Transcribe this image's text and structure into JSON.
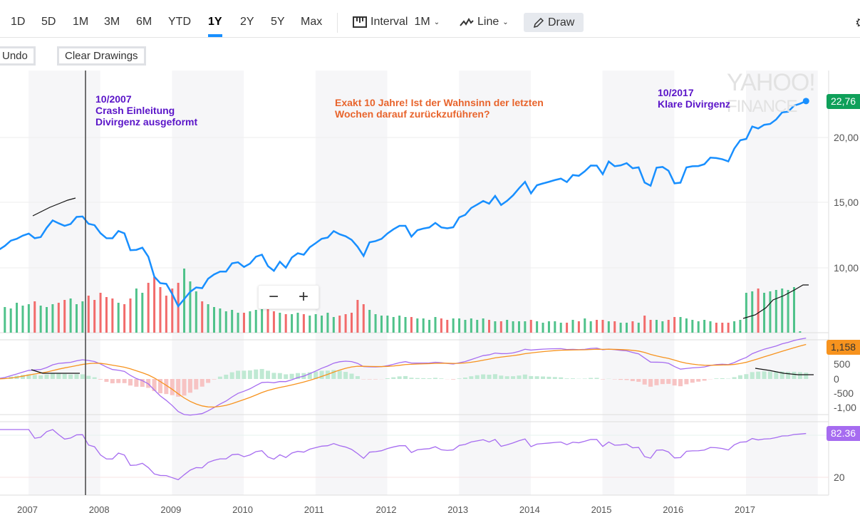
{
  "toolbar": {
    "ranges": [
      "1D",
      "5D",
      "1M",
      "3M",
      "6M",
      "YTD",
      "1Y",
      "2Y",
      "5Y",
      "Max"
    ],
    "active_range": "1Y",
    "interval_label": "Interval",
    "interval_value": "1M",
    "chart_type": "Line",
    "draw_label": "Draw"
  },
  "actions": {
    "undo": "Undo",
    "clear": "Clear Drawings"
  },
  "annotations": {
    "left": [
      "10/2007",
      "Crash Einleitung",
      "Divirgenz ausgeformt"
    ],
    "middle": [
      "Exakt 10 Jahre! Ist der Wahnsinn der letzten",
      "Wochen darauf zurückzuführen?"
    ],
    "right": [
      "10/2017",
      "Klare Divirgenz"
    ]
  },
  "watermark": [
    "YAHOO!",
    "FINANCE"
  ],
  "colors": {
    "price": "#188fff",
    "up": "#4fc28a",
    "down": "#f26b6b",
    "macd": "#a66cf0",
    "signal": "#f7931e",
    "rsi": "#a66cf0",
    "annotation_purple": "#5a14c8",
    "annotation_orange": "#e8642c",
    "price_tag": "#0fa05a"
  },
  "axes": {
    "price_ticks": [
      "20,00",
      "15,00",
      "10,00"
    ],
    "price_tag": "22,76",
    "macd_ticks": [
      "500",
      "0",
      "-500",
      "-1,00"
    ],
    "macd_tag": "1,158",
    "rsi_ticks": [
      "20"
    ],
    "rsi_tag": "82.36",
    "years": [
      "2007",
      "2008",
      "2009",
      "2010",
      "2011",
      "2012",
      "2013",
      "2014",
      "2015",
      "2016",
      "2017"
    ]
  },
  "chart_data": {
    "type": "line",
    "start": "2006-07",
    "interval": "1M",
    "price": [
      11185,
      11381,
      11679,
      12081,
      12221,
      12463,
      12622,
      12268,
      12354,
      13063,
      13628,
      13409,
      13212,
      13358,
      13896,
      13930,
      13372,
      13265,
      12650,
      12266,
      12263,
      12820,
      12638,
      11350,
      11378,
      11544,
      10851,
      9325,
      8829,
      8776,
      8001,
      7063,
      7609,
      8168,
      8500,
      8447,
      9172,
      9496,
      9712,
      9713,
      10345,
      10428,
      10067,
      10325,
      10857,
      11009,
      10137,
      9774,
      10466,
      10015,
      10788,
      11118,
      11006,
      11578,
      11892,
      12226,
      12320,
      12811,
      12570,
      12414,
      12143,
      11614,
      10913,
      11955,
      12046,
      12218,
      12633,
      12952,
      13212,
      13214,
      12393,
      12880,
      13009,
      13091,
      13437,
      13096,
      13026,
      13104,
      13861,
      14054,
      14579,
      14840,
      15116,
      14910,
      15500,
      14810,
      15130,
      15546,
      16086,
      16577,
      15699,
      16322,
      16458,
      16581,
      16717,
      16827,
      16563,
      17098,
      17043,
      17391,
      17828,
      17823,
      17165,
      18133,
      17776,
      17841,
      18011,
      17620,
      17690,
      16528,
      16285,
      17664,
      17720,
      17425,
      16466,
      16517,
      17685,
      17774,
      17787,
      17930,
      18432,
      18401,
      18308,
      18142,
      19124,
      19763,
      19864,
      20812,
      20663,
      20941,
      21009,
      21350,
      21891,
      21948,
      22405,
      22560,
      22760
    ],
    "volume": [
      38,
      40,
      36,
      34,
      42,
      38,
      40,
      44,
      38,
      36,
      40,
      42,
      46,
      48,
      40,
      44,
      52,
      46,
      56,
      50,
      48,
      42,
      40,
      48,
      62,
      56,
      70,
      78,
      64,
      52,
      62,
      70,
      90,
      72,
      58,
      44,
      40,
      36,
      34,
      30,
      32,
      28,
      28,
      30,
      32,
      34,
      36,
      30,
      28,
      26,
      26,
      28,
      26,
      24,
      26,
      24,
      28,
      22,
      24,
      26,
      28,
      46,
      40,
      32,
      26,
      24,
      24,
      22,
      24,
      22,
      22,
      20,
      20,
      18,
      22,
      20,
      18,
      20,
      20,
      18,
      20,
      18,
      20,
      18,
      16,
      16,
      18,
      16,
      16,
      16,
      18,
      16,
      14,
      16,
      16,
      14,
      14,
      18,
      16,
      20,
      16,
      18,
      18,
      16,
      16,
      14,
      14,
      16,
      14,
      24,
      18,
      18,
      16,
      18,
      22,
      22,
      20,
      18,
      16,
      18,
      16,
      14,
      14,
      14,
      16,
      18,
      56,
      58,
      62,
      56,
      58,
      60,
      62,
      60,
      64,
      2,
      0
    ]
  }
}
